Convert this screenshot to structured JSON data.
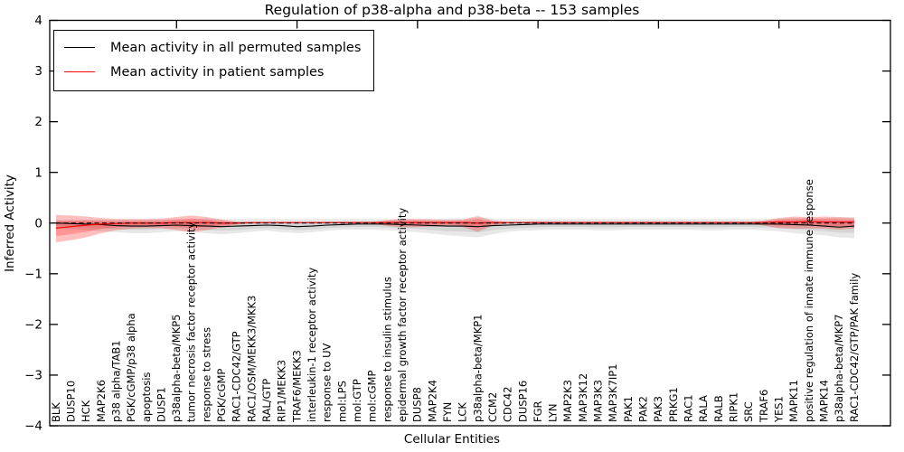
{
  "chart_data": {
    "type": "line",
    "title": "Regulation of p38-alpha and p38-beta -- 153 samples",
    "xlabel": "Cellular Entities",
    "ylabel": "Inferred Activity",
    "ylim": [
      -4,
      4
    ],
    "y_tick_values": [
      4,
      3,
      2,
      1,
      0,
      -1,
      -2,
      -3,
      -4
    ],
    "y_tick_labels": [
      "4",
      "3",
      "2",
      "1",
      "0",
      "−1",
      "−2",
      "−3",
      "−4"
    ],
    "grid": false,
    "legend_position": "upper left",
    "zero_line": {
      "y": 0,
      "style": "dashed",
      "color": "#000000"
    },
    "categories": [
      "BLK",
      "DUSP10",
      "HCK",
      "MAP2K6",
      "p38 alpha/TAB1",
      "PGK/cGMP/p38 alpha",
      "apoptosis",
      "DUSP1",
      "p38alpha-beta/MKP5",
      "tumor necrosis factor receptor activity",
      "response to stress",
      "PGK/cGMP",
      "RAC1-CDC42/GTP",
      "RAC1/OSM/MEKK3/MKK3",
      "RAL/GTP",
      "RIP1/MEKK3",
      "TRAF6/MEKK3",
      "interleukin-1 receptor activity",
      "response to UV",
      "mol:LPS",
      "mol:GTP",
      "mol:cGMP",
      "response to insulin stimulus",
      "epidermal growth factor receptor activity",
      "DUSP8",
      "MAP2K4",
      "FYN",
      "LCK",
      "p38alpha-beta/MKP1",
      "CCM2",
      "CDC42",
      "DUSP16",
      "FGR",
      "LYN",
      "MAP2K3",
      "MAP3K12",
      "MAP3K3",
      "MAP3K7IP1",
      "PAK1",
      "PAK2",
      "PAK3",
      "PRKG1",
      "RAC1",
      "RALA",
      "RALB",
      "RIPK1",
      "SRC",
      "TRAF6",
      "YES1",
      "MAPK11",
      "positive regulation of innate immune response",
      "MAPK14",
      "p38alpha-beta/MKP7",
      "RAC1-CDC42/GTP/PAK family"
    ],
    "series": [
      {
        "name": "Mean activity in all permuted samples",
        "color": "#000000",
        "band_color": "#000000",
        "values": [
          0.0,
          -0.01,
          -0.02,
          -0.03,
          -0.05,
          -0.06,
          -0.06,
          -0.05,
          -0.04,
          -0.05,
          -0.06,
          -0.07,
          -0.06,
          -0.05,
          -0.04,
          -0.05,
          -0.07,
          -0.06,
          -0.04,
          -0.03,
          -0.02,
          -0.02,
          -0.02,
          -0.03,
          -0.04,
          -0.05,
          -0.06,
          -0.06,
          -0.07,
          -0.05,
          -0.04,
          -0.03,
          -0.02,
          -0.02,
          -0.02,
          -0.02,
          -0.02,
          -0.02,
          -0.02,
          -0.02,
          -0.02,
          -0.02,
          -0.02,
          -0.02,
          -0.02,
          -0.02,
          -0.02,
          -0.02,
          -0.02,
          -0.03,
          -0.04,
          -0.06,
          -0.08,
          -0.06
        ],
        "band_upper": [
          0.06,
          0.06,
          0.06,
          0.07,
          0.07,
          0.07,
          0.07,
          0.07,
          0.07,
          0.08,
          0.08,
          0.08,
          0.08,
          0.08,
          0.08,
          0.08,
          0.08,
          0.08,
          0.08,
          0.08,
          0.08,
          0.08,
          0.08,
          0.08,
          0.08,
          0.09,
          0.09,
          0.09,
          0.1,
          0.09,
          0.08,
          0.08,
          0.08,
          0.08,
          0.08,
          0.08,
          0.08,
          0.08,
          0.08,
          0.08,
          0.08,
          0.08,
          0.08,
          0.08,
          0.08,
          0.08,
          0.08,
          0.08,
          0.09,
          0.1,
          0.1,
          0.1,
          0.11,
          0.12
        ],
        "band_lower": [
          -0.1,
          -0.12,
          -0.14,
          -0.16,
          -0.18,
          -0.2,
          -0.2,
          -0.18,
          -0.16,
          -0.18,
          -0.2,
          -0.22,
          -0.2,
          -0.17,
          -0.15,
          -0.18,
          -0.2,
          -0.18,
          -0.15,
          -0.13,
          -0.13,
          -0.13,
          -0.14,
          -0.16,
          -0.18,
          -0.21,
          -0.24,
          -0.26,
          -0.28,
          -0.22,
          -0.17,
          -0.15,
          -0.14,
          -0.13,
          -0.13,
          -0.13,
          -0.14,
          -0.14,
          -0.13,
          -0.13,
          -0.13,
          -0.13,
          -0.13,
          -0.14,
          -0.14,
          -0.13,
          -0.13,
          -0.14,
          -0.16,
          -0.2,
          -0.22,
          -0.24,
          -0.28,
          -0.3
        ]
      },
      {
        "name": "Mean activity in patient samples",
        "color": "#ff0000",
        "band_color": "#ff0000",
        "values": [
          -0.1,
          -0.07,
          -0.04,
          -0.02,
          -0.01,
          0.0,
          0.0,
          0.0,
          0.01,
          0.01,
          0.01,
          0.0,
          0.0,
          0.01,
          0.01,
          0.01,
          0.01,
          0.01,
          0.01,
          0.01,
          0.01,
          0.01,
          0.01,
          0.01,
          0.01,
          0.01,
          0.01,
          0.01,
          0.0,
          0.01,
          0.01,
          0.01,
          0.01,
          0.01,
          0.01,
          0.01,
          0.01,
          0.01,
          0.01,
          0.01,
          0.01,
          0.01,
          0.01,
          0.01,
          0.01,
          0.01,
          0.01,
          0.01,
          0.02,
          0.02,
          0.03,
          0.02,
          0.02,
          0.02
        ],
        "band_upper": [
          0.16,
          0.15,
          0.13,
          0.1,
          0.08,
          0.08,
          0.08,
          0.09,
          0.12,
          0.15,
          0.12,
          0.07,
          0.03,
          0.02,
          0.02,
          0.02,
          0.02,
          0.02,
          0.02,
          0.02,
          0.02,
          0.02,
          0.06,
          0.08,
          0.08,
          0.07,
          0.06,
          0.07,
          0.14,
          0.05,
          0.02,
          0.02,
          0.02,
          0.02,
          0.02,
          0.02,
          0.02,
          0.02,
          0.02,
          0.02,
          0.02,
          0.02,
          0.02,
          0.02,
          0.02,
          0.02,
          0.02,
          0.05,
          0.1,
          0.13,
          0.12,
          0.13,
          0.12,
          0.1
        ],
        "band_lower": [
          -0.38,
          -0.34,
          -0.28,
          -0.2,
          -0.14,
          -0.11,
          -0.1,
          -0.1,
          -0.14,
          -0.18,
          -0.14,
          -0.08,
          -0.03,
          -0.01,
          -0.01,
          -0.01,
          -0.01,
          -0.01,
          -0.01,
          -0.01,
          -0.01,
          -0.01,
          -0.06,
          -0.08,
          -0.08,
          -0.07,
          -0.06,
          -0.08,
          -0.17,
          -0.05,
          -0.01,
          -0.01,
          -0.01,
          -0.01,
          -0.01,
          -0.01,
          -0.01,
          -0.01,
          -0.01,
          -0.01,
          -0.01,
          -0.01,
          -0.01,
          -0.01,
          -0.01,
          -0.01,
          -0.01,
          -0.05,
          -0.1,
          -0.11,
          -0.11,
          -0.11,
          -0.13,
          -0.11
        ]
      }
    ]
  }
}
